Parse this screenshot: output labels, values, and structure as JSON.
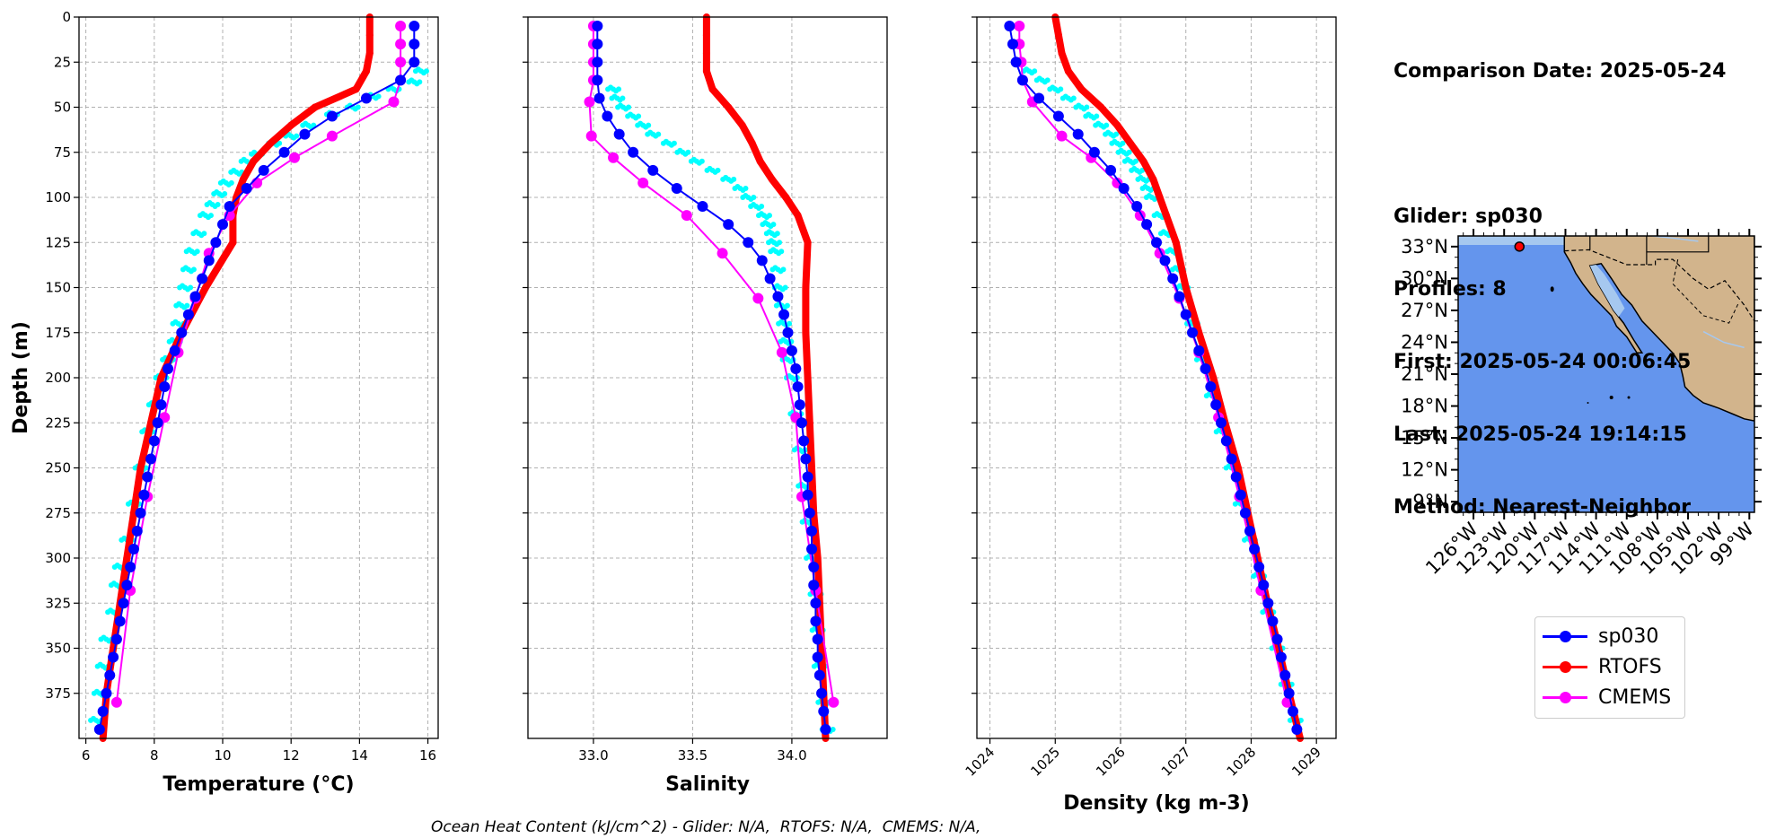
{
  "info": {
    "comparison_date": "Comparison Date: 2025-05-24",
    "glider": "Glider: sp030",
    "profiles": "Profiles: 8",
    "first": "First: 2025-05-24 00:06:45",
    "last": "Last: 2025-05-24 19:14:15",
    "method": "Method: Nearest-Neighbor"
  },
  "footer": "Ocean Heat Content (kJ/cm^2) - Glider: N/A,  RTOFS: N/A,  CMEMS: N/A,",
  "colors": {
    "glider": "#0000ff",
    "rtofs": "#ff0000",
    "cmems": "#ff00ff",
    "glider_raw": "#00ffff",
    "ocean": "#6495ed",
    "land": "#d2b48c",
    "lakes": "#a6c8ef"
  },
  "legend": [
    {
      "label": "sp030",
      "color": "#0000ff"
    },
    {
      "label": "RTOFS",
      "color": "#ff0000"
    },
    {
      "label": "CMEMS",
      "color": "#ff00ff"
    }
  ],
  "chart_data": [
    {
      "type": "line",
      "name": "temperature-profile",
      "xlabel": "Temperature (°C)",
      "ylabel": "Depth (m)",
      "xlim": [
        5.8,
        16.3
      ],
      "ylim": [
        400,
        0
      ],
      "xticks": [
        6,
        8,
        10,
        12,
        14,
        16
      ],
      "yticks": [
        0,
        25,
        50,
        75,
        100,
        125,
        150,
        175,
        200,
        225,
        250,
        275,
        300,
        325,
        350,
        375
      ],
      "grid": true,
      "series": [
        {
          "name": "sp030",
          "depth": [
            5,
            15,
            25,
            35,
            45,
            55,
            65,
            75,
            85,
            95,
            105,
            115,
            125,
            135,
            145,
            155,
            165,
            175,
            185,
            195,
            205,
            215,
            225,
            235,
            245,
            255,
            265,
            275,
            285,
            295,
            305,
            315,
            325,
            335,
            345,
            355,
            365,
            375,
            385,
            395
          ],
          "values": [
            15.6,
            15.6,
            15.6,
            15.2,
            14.2,
            13.2,
            12.4,
            11.8,
            11.2,
            10.7,
            10.2,
            10.0,
            9.8,
            9.6,
            9.4,
            9.2,
            9.0,
            8.8,
            8.6,
            8.4,
            8.3,
            8.2,
            8.1,
            8.0,
            7.9,
            7.8,
            7.7,
            7.6,
            7.5,
            7.4,
            7.3,
            7.2,
            7.1,
            7.0,
            6.9,
            6.8,
            6.7,
            6.6,
            6.5,
            6.4
          ]
        },
        {
          "name": "RTOFS",
          "depth": [
            0,
            10,
            20,
            30,
            40,
            50,
            60,
            70,
            80,
            90,
            100,
            110,
            125,
            150,
            175,
            200,
            225,
            250,
            275,
            300,
            325,
            350,
            375,
            400
          ],
          "values": [
            14.3,
            14.3,
            14.3,
            14.2,
            13.9,
            12.7,
            12.0,
            11.4,
            10.9,
            10.6,
            10.4,
            10.3,
            10.3,
            9.5,
            8.8,
            8.2,
            7.9,
            7.6,
            7.4,
            7.2,
            7.0,
            6.8,
            6.6,
            6.5
          ]
        },
        {
          "name": "CMEMS",
          "depth": [
            5,
            15,
            25,
            35,
            47,
            66,
            78,
            92,
            110,
            131,
            156,
            186,
            222,
            266,
            318,
            380
          ],
          "values": [
            15.2,
            15.2,
            15.2,
            15.2,
            15.0,
            13.2,
            12.1,
            11.0,
            10.2,
            9.6,
            9.2,
            8.7,
            8.3,
            7.8,
            7.3,
            6.9
          ]
        }
      ],
      "raw": {
        "depth": [
          30,
          36,
          40,
          44,
          50,
          54,
          60,
          66,
          70,
          76,
          80,
          86,
          92,
          98,
          104,
          110,
          120,
          130,
          140,
          150,
          160,
          170,
          180,
          190,
          200,
          215,
          230,
          250,
          270,
          290,
          305,
          315,
          330,
          345,
          360,
          375,
          390
        ],
        "values": [
          15.8,
          15.6,
          15.0,
          14.4,
          13.8,
          13.2,
          12.5,
          12.0,
          11.5,
          11.0,
          10.7,
          10.4,
          10.1,
          9.9,
          9.7,
          9.5,
          9.3,
          9.1,
          9.0,
          8.9,
          8.8,
          8.7,
          8.6,
          8.4,
          8.2,
          8.0,
          7.8,
          7.6,
          7.4,
          7.2,
          7.0,
          6.9,
          6.8,
          6.6,
          6.5,
          6.4,
          6.3
        ]
      }
    },
    {
      "type": "line",
      "name": "salinity-profile",
      "xlabel": "Salinity",
      "ylabel": "",
      "xlim": [
        32.67,
        34.48
      ],
      "ylim": [
        400,
        0
      ],
      "xticks": [
        33.0,
        33.5,
        34.0
      ],
      "yticks": [
        0,
        25,
        50,
        75,
        100,
        125,
        150,
        175,
        200,
        225,
        250,
        275,
        300,
        325,
        350,
        375
      ],
      "grid": true,
      "series": [
        {
          "name": "sp030",
          "depth": [
            5,
            15,
            25,
            35,
            45,
            55,
            65,
            75,
            85,
            95,
            105,
            115,
            125,
            135,
            145,
            155,
            165,
            175,
            185,
            195,
            205,
            215,
            225,
            235,
            245,
            255,
            265,
            275,
            285,
            295,
            305,
            315,
            325,
            335,
            345,
            355,
            365,
            375,
            385,
            395
          ],
          "values": [
            33.02,
            33.02,
            33.02,
            33.02,
            33.03,
            33.07,
            33.13,
            33.2,
            33.3,
            33.42,
            33.55,
            33.68,
            33.78,
            33.85,
            33.89,
            33.93,
            33.96,
            33.98,
            34.0,
            34.02,
            34.03,
            34.04,
            34.05,
            34.06,
            34.07,
            34.08,
            34.08,
            34.09,
            34.1,
            34.1,
            34.11,
            34.11,
            34.12,
            34.12,
            34.13,
            34.13,
            34.14,
            34.15,
            34.16,
            34.17
          ]
        },
        {
          "name": "RTOFS",
          "depth": [
            0,
            10,
            20,
            30,
            40,
            50,
            60,
            70,
            80,
            90,
            100,
            110,
            125,
            150,
            175,
            200,
            225,
            250,
            275,
            300,
            325,
            350,
            375,
            400
          ],
          "values": [
            33.57,
            33.57,
            33.57,
            33.57,
            33.6,
            33.68,
            33.75,
            33.8,
            33.84,
            33.9,
            33.97,
            34.03,
            34.08,
            34.07,
            34.07,
            34.08,
            34.09,
            34.1,
            34.11,
            34.13,
            34.14,
            34.15,
            34.16,
            34.17
          ]
        },
        {
          "name": "CMEMS",
          "depth": [
            5,
            15,
            25,
            35,
            47,
            66,
            78,
            92,
            110,
            131,
            156,
            186,
            222,
            266,
            318,
            380
          ],
          "values": [
            33.0,
            33.0,
            33.0,
            33.0,
            32.98,
            32.99,
            33.1,
            33.25,
            33.47,
            33.65,
            33.83,
            33.95,
            34.02,
            34.05,
            34.12,
            34.21
          ]
        }
      ],
      "raw": {
        "depth": [
          40,
          45,
          50,
          55,
          60,
          65,
          70,
          75,
          80,
          85,
          90,
          95,
          100,
          105,
          110,
          115,
          120,
          125,
          130,
          140,
          150,
          160,
          170,
          180,
          190,
          200,
          220,
          240,
          260,
          280,
          300,
          320,
          340,
          360,
          380,
          395
        ],
        "values": [
          33.1,
          33.12,
          33.15,
          33.2,
          33.25,
          33.3,
          33.38,
          33.45,
          33.52,
          33.6,
          33.68,
          33.74,
          33.78,
          33.82,
          33.86,
          33.88,
          33.9,
          33.91,
          33.92,
          33.93,
          33.94,
          33.95,
          33.96,
          33.97,
          33.98,
          34.0,
          34.02,
          34.04,
          34.06,
          34.08,
          34.1,
          34.12,
          34.13,
          34.14,
          34.16,
          34.18
        ]
      }
    },
    {
      "type": "line",
      "name": "density-profile",
      "xlabel": "Density (kg m-3)",
      "ylabel": "",
      "xlim": [
        1023.8,
        1029.3
      ],
      "ylim": [
        400,
        0
      ],
      "xticks": [
        1024,
        1025,
        1026,
        1027,
        1028,
        1029
      ],
      "yticks": [
        0,
        25,
        50,
        75,
        100,
        125,
        150,
        175,
        200,
        225,
        250,
        275,
        300,
        325,
        350,
        375
      ],
      "grid": true,
      "series": [
        {
          "name": "sp030",
          "depth": [
            5,
            15,
            25,
            35,
            45,
            55,
            65,
            75,
            85,
            95,
            105,
            115,
            125,
            135,
            145,
            155,
            165,
            175,
            185,
            195,
            205,
            215,
            225,
            235,
            245,
            255,
            265,
            275,
            285,
            295,
            305,
            315,
            325,
            335,
            345,
            355,
            365,
            375,
            385,
            395
          ],
          "values": [
            1024.3,
            1024.35,
            1024.4,
            1024.5,
            1024.75,
            1025.05,
            1025.35,
            1025.6,
            1025.85,
            1026.05,
            1026.25,
            1026.4,
            1026.55,
            1026.68,
            1026.8,
            1026.9,
            1027.0,
            1027.1,
            1027.2,
            1027.3,
            1027.38,
            1027.46,
            1027.54,
            1027.62,
            1027.7,
            1027.77,
            1027.84,
            1027.91,
            1027.98,
            1028.05,
            1028.12,
            1028.19,
            1028.26,
            1028.33,
            1028.4,
            1028.46,
            1028.52,
            1028.58,
            1028.64,
            1028.7
          ]
        },
        {
          "name": "RTOFS",
          "depth": [
            0,
            10,
            20,
            30,
            40,
            50,
            60,
            70,
            80,
            90,
            100,
            110,
            125,
            150,
            175,
            200,
            225,
            250,
            275,
            300,
            325,
            350,
            375,
            400
          ],
          "values": [
            1025.0,
            1025.05,
            1025.1,
            1025.2,
            1025.4,
            1025.7,
            1025.95,
            1026.15,
            1026.35,
            1026.5,
            1026.6,
            1026.7,
            1026.85,
            1027.0,
            1027.2,
            1027.42,
            1027.6,
            1027.8,
            1027.95,
            1028.1,
            1028.25,
            1028.42,
            1028.58,
            1028.75
          ]
        },
        {
          "name": "CMEMS",
          "depth": [
            5,
            15,
            25,
            35,
            47,
            66,
            78,
            92,
            110,
            131,
            156,
            186,
            222,
            266,
            318,
            380
          ],
          "values": [
            1024.45,
            1024.45,
            1024.48,
            1024.5,
            1024.65,
            1025.1,
            1025.55,
            1025.95,
            1026.3,
            1026.6,
            1026.9,
            1027.2,
            1027.5,
            1027.82,
            1028.15,
            1028.55
          ]
        }
      ],
      "raw": {
        "depth": [
          30,
          35,
          40,
          45,
          50,
          55,
          60,
          65,
          70,
          75,
          80,
          85,
          90,
          95,
          100,
          110,
          120,
          130,
          140,
          150,
          170,
          190,
          210,
          230,
          250,
          270,
          290,
          310,
          330,
          350,
          370,
          390
        ],
        "values": [
          1024.6,
          1024.8,
          1025.0,
          1025.2,
          1025.4,
          1025.55,
          1025.7,
          1025.85,
          1025.95,
          1026.05,
          1026.15,
          1026.25,
          1026.35,
          1026.42,
          1026.48,
          1026.6,
          1026.7,
          1026.8,
          1026.88,
          1026.95,
          1027.1,
          1027.25,
          1027.4,
          1027.55,
          1027.7,
          1027.84,
          1027.98,
          1028.12,
          1028.26,
          1028.4,
          1028.54,
          1028.68
        ]
      }
    },
    {
      "type": "map",
      "name": "glider-location-map",
      "lat_ticks": [
        "33°N",
        "30°N",
        "27°N",
        "24°N",
        "21°N",
        "18°N",
        "15°N",
        "12°N",
        "9°N"
      ],
      "lon_ticks": [
        "126°W",
        "123°W",
        "120°W",
        "117°W",
        "114°W",
        "111°W",
        "108°W",
        "105°W",
        "102°W",
        "99°W"
      ],
      "lat_range": [
        8,
        34
      ],
      "lon_range": [
        -127.5,
        -98.5
      ],
      "glider_position": {
        "lat": 33.0,
        "lon": -121.5
      }
    }
  ]
}
